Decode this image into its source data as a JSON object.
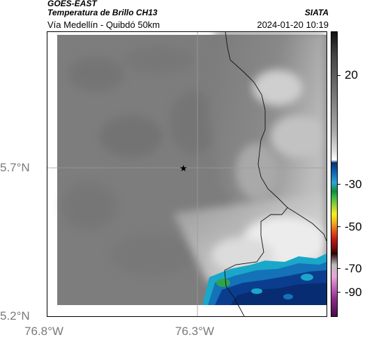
{
  "header": {
    "title_line1": "GOES-EAST",
    "title_line2": "Temperatura de Brillo CH13",
    "subtitle": "Vía Medellín - Quibdó 50km",
    "brand": "SIATA",
    "datetime": "2024-01-20 10:19"
  },
  "map": {
    "lat_ticks": [
      "5.7°N",
      "5.2°N"
    ],
    "lon_ticks": [
      "76.8°W",
      "76.3°W"
    ],
    "marker_icon": "star-icon"
  },
  "colorbar": {
    "labels": [
      "20",
      "-30",
      "-50",
      "-70",
      "-90"
    ]
  }
}
